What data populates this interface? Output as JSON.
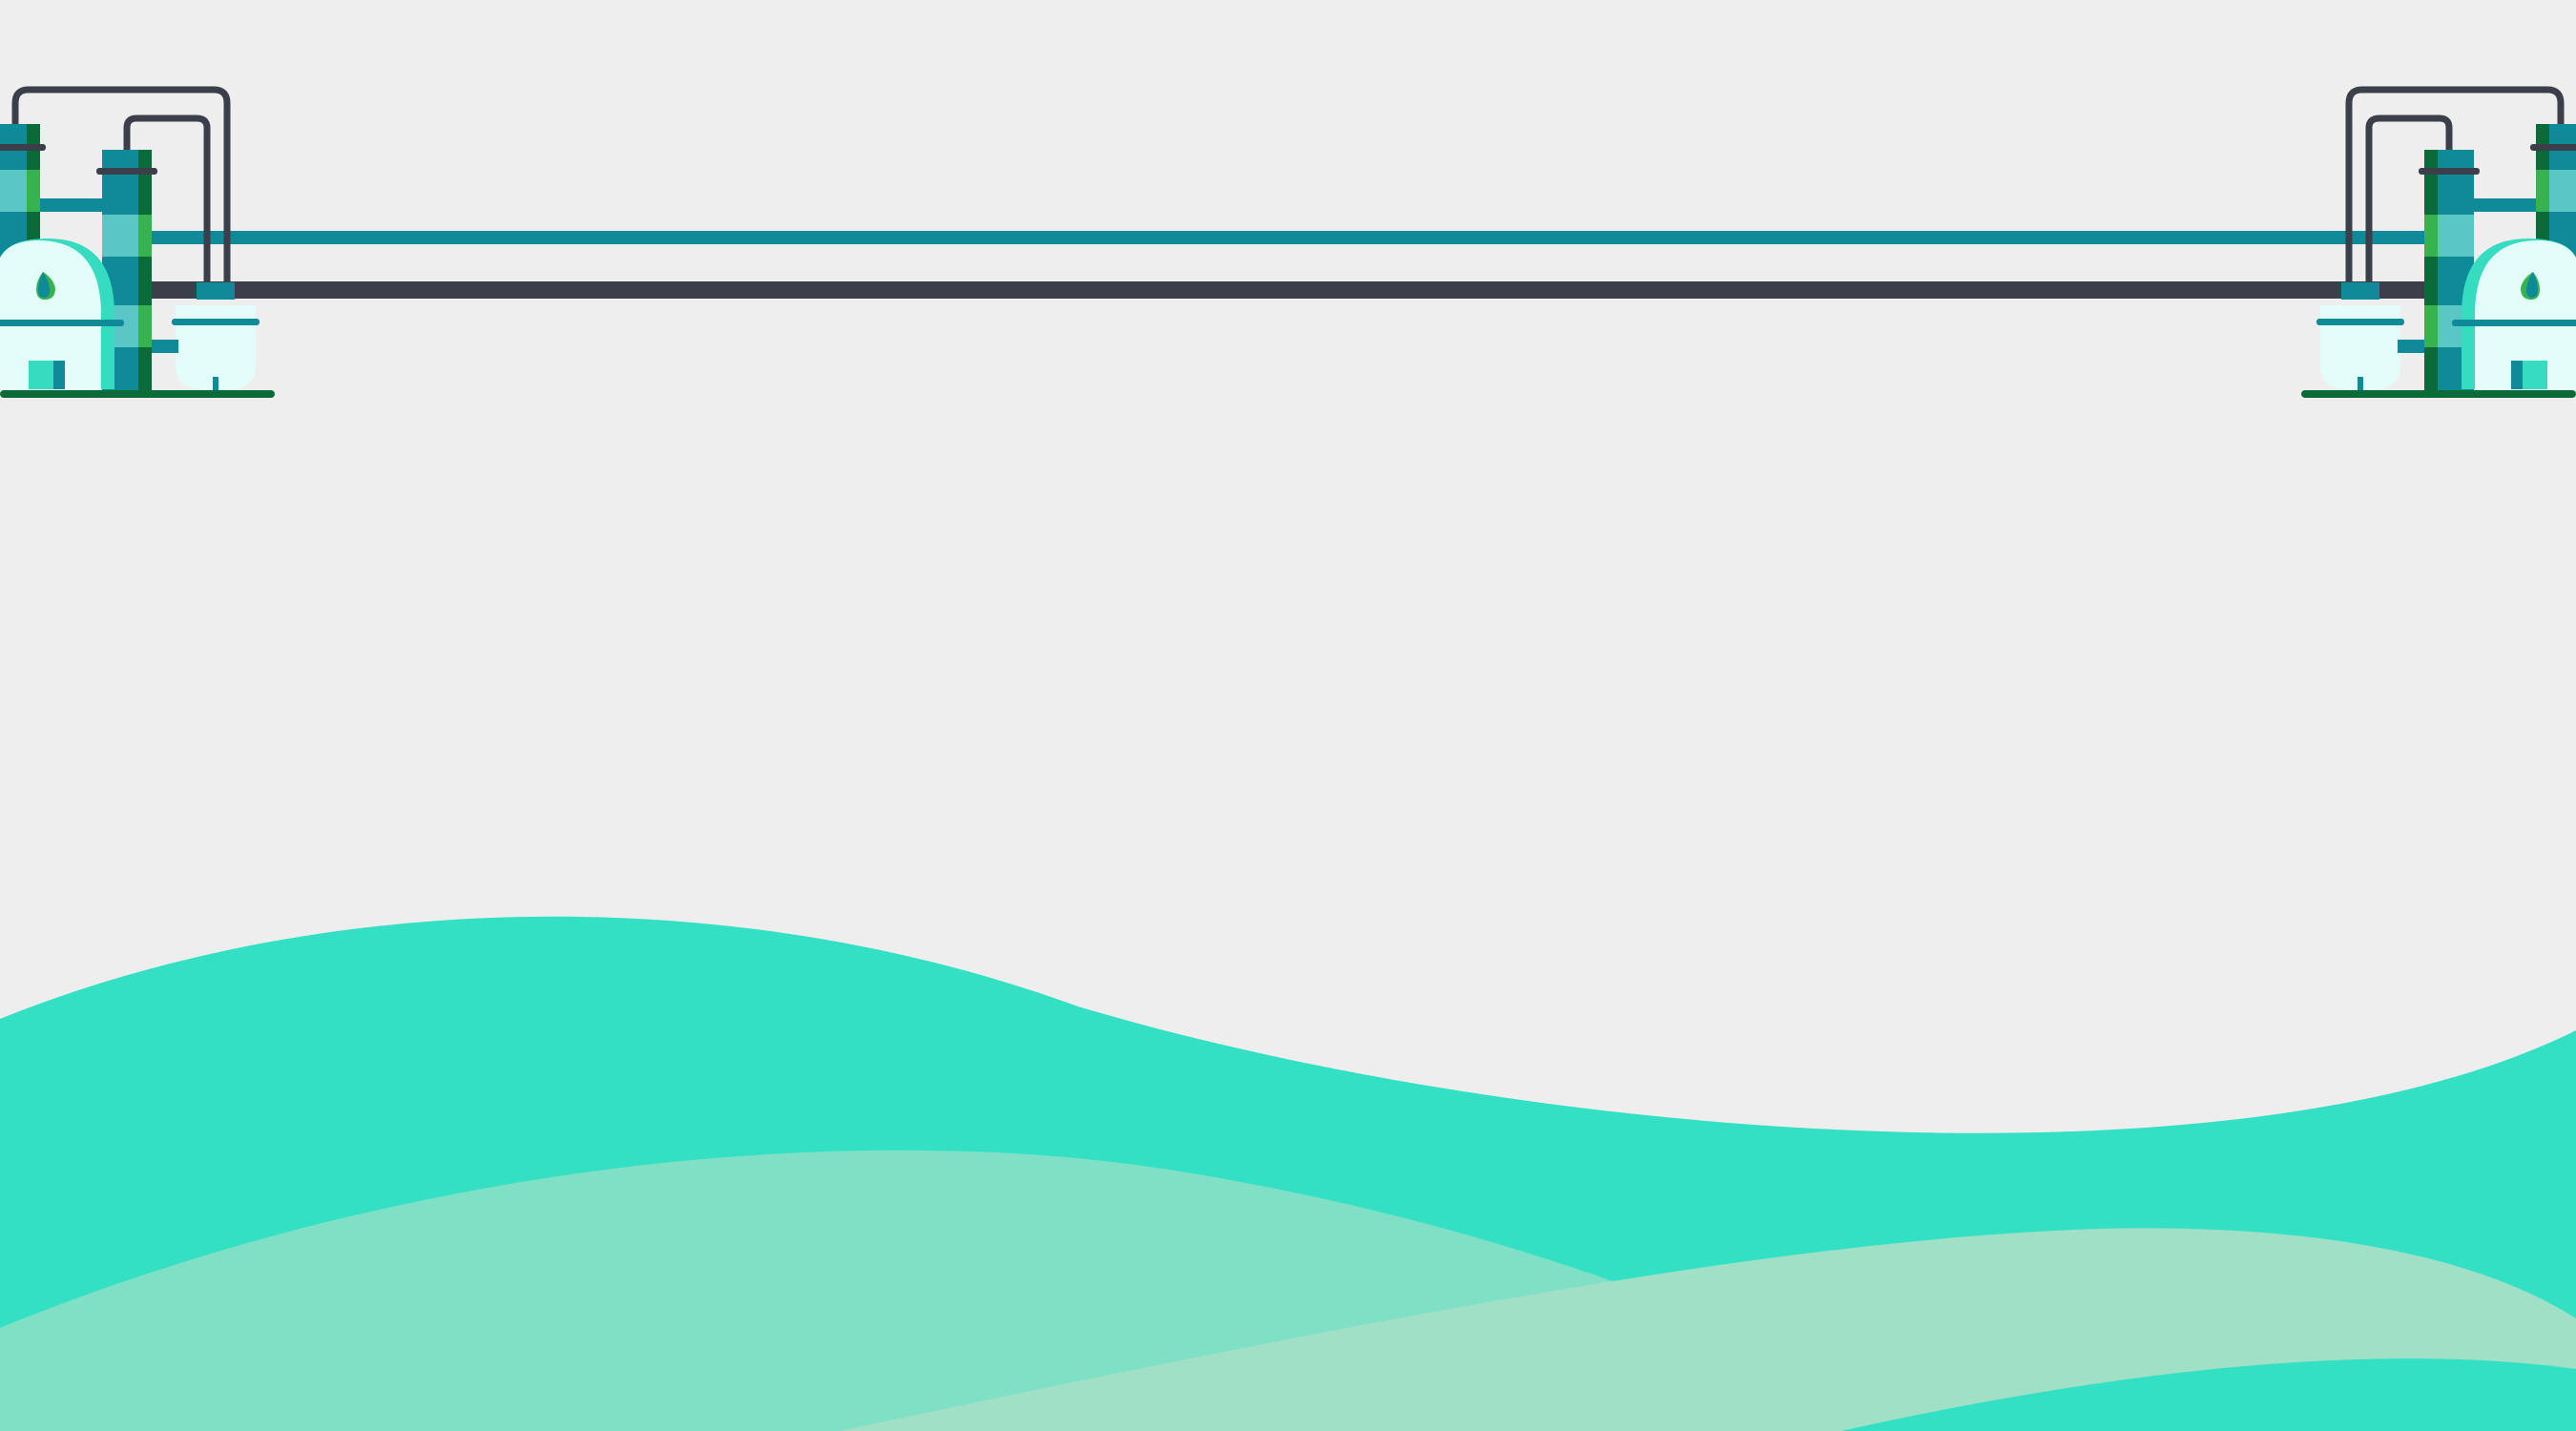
{
  "slide": {
    "background": "#eeeeee",
    "colors": {
      "teal_dark": "#0e8a99",
      "pipe_dark": "#3a3f49",
      "wave_main": "#33e0c4",
      "wave_light": "#7fe0c6",
      "wave_pale": "#9fe0c6",
      "tank_fill": "#e2fdfa",
      "tank_accent": "#36dcc0",
      "column_mid": "#5ac6c6",
      "column_green": "#36b34e",
      "column_dark_green": "#0b6b38",
      "ground_line": "#0b6b38"
    },
    "decor": {
      "left_plant": "refinery-plant-icon",
      "right_plant": "refinery-plant-icon",
      "pipes": "pipeline-illustration",
      "waves": "wave-shapes"
    }
  }
}
